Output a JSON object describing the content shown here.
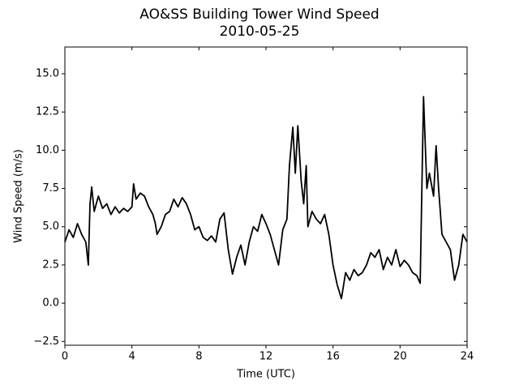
{
  "chart_data": {
    "type": "line",
    "title": "AO&SS Building Tower Wind Speed",
    "subtitle": "2010-05-25",
    "x_label": "Time (UTC)",
    "y_label": "Wind Speed (m/s)",
    "xlim": [
      0,
      24
    ],
    "xticks": [
      0,
      4,
      8,
      12,
      16,
      20,
      24
    ],
    "ylim": [
      -2.75,
      16.75
    ],
    "yticks": [
      {
        "value": -2.5,
        "label": "−2.5"
      },
      {
        "value": 0,
        "label": "0.0"
      },
      {
        "value": 2.5,
        "label": "2.5"
      },
      {
        "value": 5,
        "label": "5.0"
      },
      {
        "value": 7.5,
        "label": "7.5"
      },
      {
        "value": 10,
        "label": "10.0"
      },
      {
        "value": 12.5,
        "label": "12.5"
      },
      {
        "value": 15,
        "label": "15.0"
      }
    ],
    "x": [
      0,
      0.25,
      0.5,
      0.75,
      1.0,
      1.25,
      1.4,
      1.5,
      1.6,
      1.75,
      2.0,
      2.25,
      2.5,
      2.75,
      3.0,
      3.25,
      3.5,
      3.75,
      4.0,
      4.1,
      4.25,
      4.5,
      4.75,
      5.0,
      5.25,
      5.4,
      5.5,
      5.75,
      6.0,
      6.25,
      6.5,
      6.75,
      7.0,
      7.25,
      7.5,
      7.75,
      8.0,
      8.25,
      8.5,
      8.75,
      9.0,
      9.25,
      9.5,
      9.75,
      10.0,
      10.25,
      10.5,
      10.75,
      11.0,
      11.25,
      11.5,
      11.75,
      12.0,
      12.25,
      12.5,
      12.75,
      13.0,
      13.25,
      13.4,
      13.6,
      13.75,
      13.9,
      14.1,
      14.25,
      14.4,
      14.5,
      14.75,
      15.0,
      15.25,
      15.5,
      15.75,
      16.0,
      16.25,
      16.5,
      16.75,
      17.0,
      17.25,
      17.5,
      17.75,
      18.0,
      18.25,
      18.5,
      18.75,
      19.0,
      19.25,
      19.5,
      19.75,
      20.0,
      20.25,
      20.5,
      20.75,
      21.0,
      21.2,
      21.4,
      21.6,
      21.75,
      22.0,
      22.15,
      22.3,
      22.5,
      22.75,
      23.0,
      23.25,
      23.5,
      23.75,
      24.0
    ],
    "series": [
      {
        "color": "#000000",
        "values": [
          4.0,
          4.8,
          4.3,
          5.2,
          4.5,
          4.0,
          2.5,
          6.5,
          7.6,
          6.0,
          7.0,
          6.2,
          6.5,
          5.8,
          6.3,
          5.9,
          6.2,
          6.0,
          6.3,
          7.8,
          6.8,
          7.2,
          7.0,
          6.3,
          5.8,
          5.2,
          4.5,
          5.0,
          5.8,
          6.0,
          6.8,
          6.3,
          6.9,
          6.5,
          5.8,
          4.8,
          5.0,
          4.3,
          4.1,
          4.4,
          4.0,
          5.5,
          5.9,
          3.5,
          1.9,
          3.0,
          3.8,
          2.5,
          4.0,
          5.0,
          4.7,
          5.8,
          5.2,
          4.5,
          3.5,
          2.5,
          4.8,
          5.5,
          9.0,
          11.5,
          8.5,
          11.6,
          8.0,
          6.5,
          9.0,
          5.0,
          6.0,
          5.5,
          5.2,
          5.8,
          4.5,
          2.5,
          1.2,
          0.3,
          2.0,
          1.5,
          2.2,
          1.8,
          2.0,
          2.5,
          3.3,
          3.0,
          3.5,
          2.2,
          3.0,
          2.5,
          3.5,
          2.4,
          2.8,
          2.5,
          2.0,
          1.8,
          1.3,
          13.5,
          7.5,
          8.5,
          7.0,
          10.3,
          7.5,
          4.5,
          4.0,
          3.5,
          1.5,
          2.5,
          4.5,
          4.0
        ]
      }
    ]
  }
}
